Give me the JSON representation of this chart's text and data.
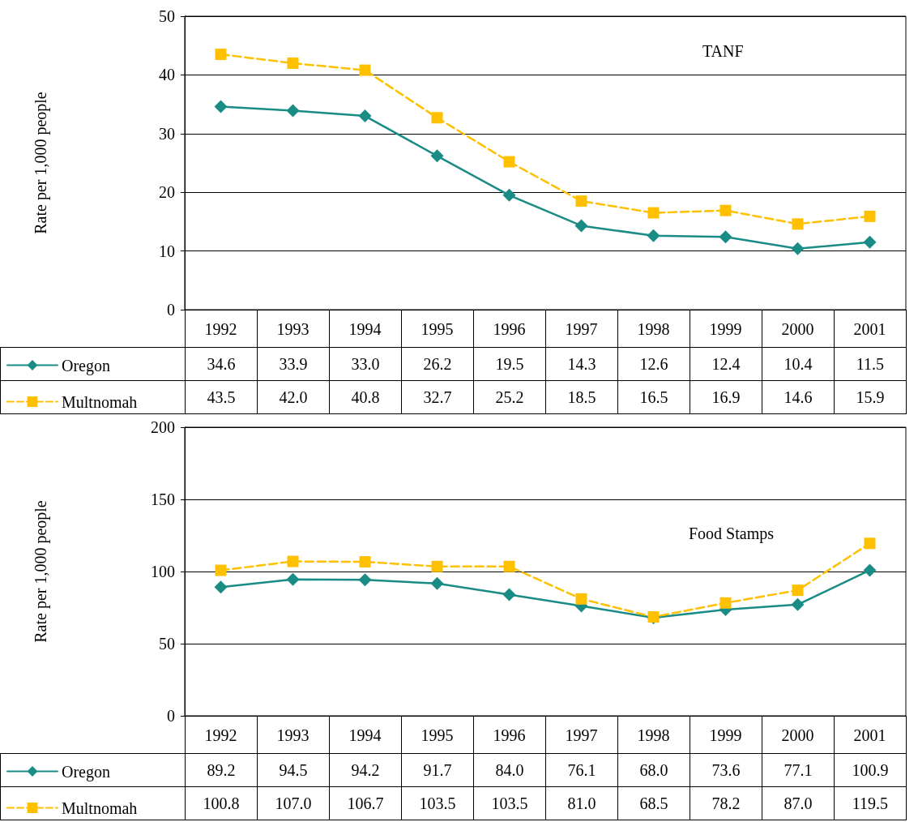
{
  "chart_data": [
    {
      "type": "line",
      "title": "TANF",
      "ylabel": "Rate per 1,000 people",
      "categories": [
        "1992",
        "1993",
        "1994",
        "1995",
        "1996",
        "1997",
        "1998",
        "1999",
        "2000",
        "2001"
      ],
      "series": [
        {
          "name": "Oregon",
          "color": "#1a8c86",
          "marker": "diamond",
          "line_style": "solid",
          "values": [
            34.6,
            33.9,
            33.0,
            26.2,
            19.5,
            14.3,
            12.6,
            12.4,
            10.4,
            11.5
          ],
          "value_labels": [
            "34.6",
            "33.9",
            "33.0",
            "26.2",
            "19.5",
            "14.3",
            "12.6",
            "12.4",
            "10.4",
            "11.5"
          ]
        },
        {
          "name": "Multnomah",
          "color": "#ffc000",
          "marker": "square",
          "line_style": "dashed",
          "values": [
            43.5,
            42.0,
            40.8,
            32.7,
            25.2,
            18.5,
            16.5,
            16.9,
            14.6,
            15.9
          ],
          "value_labels": [
            "43.5",
            "42.0",
            "40.8",
            "32.7",
            "25.2",
            "18.5",
            "16.5",
            "16.9",
            "14.6",
            "15.9"
          ]
        }
      ],
      "ylim": [
        0,
        50
      ],
      "yticks": [
        0,
        10,
        20,
        30,
        40,
        50
      ],
      "grid": "y",
      "legend": "bottom left"
    },
    {
      "type": "line",
      "title": "Food Stamps",
      "ylabel": "Rate per 1,000 people",
      "categories": [
        "1992",
        "1993",
        "1994",
        "1995",
        "1996",
        "1997",
        "1998",
        "1999",
        "2000",
        "2001"
      ],
      "series": [
        {
          "name": "Oregon",
          "color": "#1a8c86",
          "marker": "diamond",
          "line_style": "solid",
          "values": [
            89.2,
            94.5,
            94.2,
            91.7,
            84.0,
            76.1,
            68.0,
            73.6,
            77.1,
            100.9
          ],
          "value_labels": [
            "89.2",
            "94.5",
            "94.2",
            "91.7",
            "84.0",
            "76.1",
            "68.0",
            "73.6",
            "77.1",
            "100.9"
          ]
        },
        {
          "name": "Multnomah",
          "color": "#ffc000",
          "marker": "square",
          "line_style": "dashed",
          "values": [
            100.8,
            107.0,
            106.7,
            103.5,
            103.5,
            81.0,
            68.5,
            78.2,
            87.0,
            119.5
          ],
          "value_labels": [
            "100.8",
            "107.0",
            "106.7",
            "103.5",
            "103.5",
            "81.0",
            "68.5",
            "78.2",
            "87.0",
            "119.5"
          ]
        }
      ],
      "ylim": [
        0,
        200
      ],
      "yticks": [
        0,
        50,
        100,
        150,
        200
      ],
      "grid": "y",
      "legend": "bottom left"
    }
  ]
}
